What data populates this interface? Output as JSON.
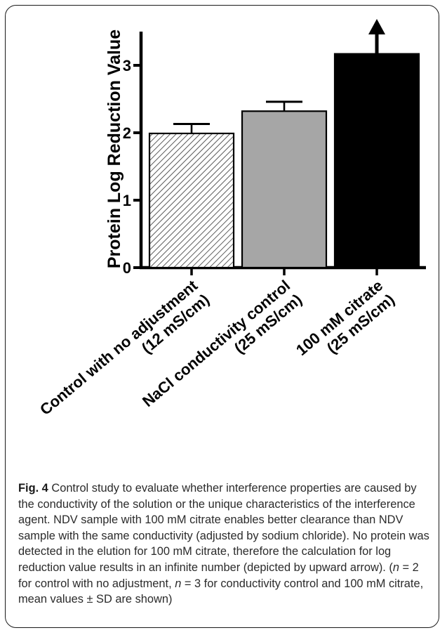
{
  "chart_data": {
    "type": "bar",
    "ylabel": "Protein Log Reduction Value",
    "xlabel": "",
    "ylim": [
      0,
      3.5
    ],
    "yticks": [
      0,
      1,
      2,
      3
    ],
    "ytick_labels": [
      "0",
      "1",
      "2",
      "3"
    ],
    "categories": [
      [
        "Control with no adjustment",
        "(12 mS/cm)"
      ],
      [
        "NaCl conductivity control",
        "(25 mS/cm)"
      ],
      [
        "100 mM citrate",
        "(25 mS/cm)"
      ]
    ],
    "values": [
      1.99,
      2.32,
      3.17
    ],
    "errors": [
      0.14,
      0.14,
      null
    ],
    "fills": [
      "hatched",
      "#a6a6a6",
      "#000000"
    ],
    "arrow_on": [
      false,
      false,
      true
    ]
  },
  "caption": {
    "label": "Fig. 4",
    "parts": [
      {
        "t": " Control study to evaluate whether interference properties are caused by the conductivity of the solution or the unique characteristics of the interference agent. NDV sample with 100 mM citrate enables better clearance than NDV sample with the same conductivity (adjusted by sodium chloride). No protein was detected in the elution for 100 mM citrate, therefore the calculation for log reduction value results in an infinite number (depicted by upward arrow). (",
        "i": false
      },
      {
        "t": "n",
        "i": true
      },
      {
        "t": " = 2 for control with no adjustment, ",
        "i": false
      },
      {
        "t": "n",
        "i": true
      },
      {
        "t": " = 3 for conductivity control and 100 mM citrate, mean values ± SD are shown)",
        "i": false
      }
    ]
  }
}
